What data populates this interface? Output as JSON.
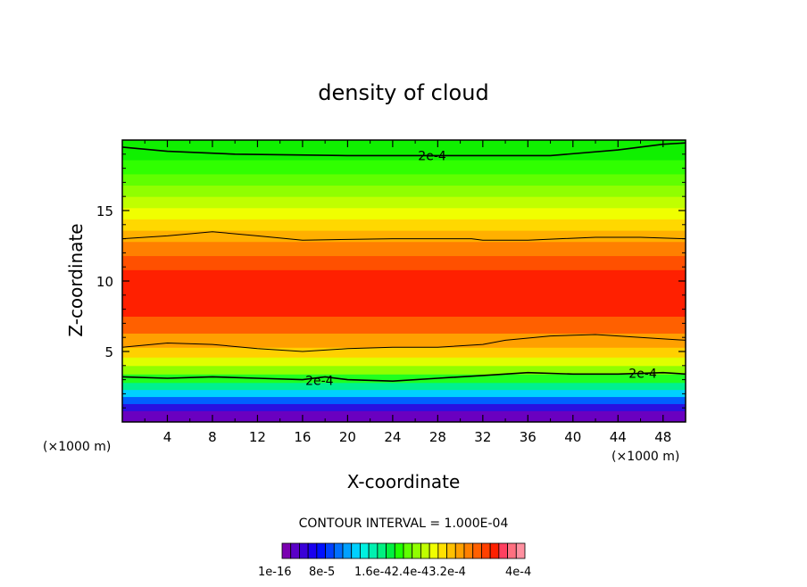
{
  "chart_data": {
    "type": "heatmap",
    "title": "density of cloud",
    "xlabel": "X-coordinate",
    "ylabel": "Z-coordinate",
    "x_unit": "(×1000 m)",
    "z_unit": "(×1000 m)",
    "xlim": [
      0,
      50
    ],
    "ylim": [
      0,
      20
    ],
    "x_ticks": [
      4,
      8,
      12,
      16,
      20,
      24,
      28,
      32,
      36,
      40,
      44,
      48
    ],
    "x_tick_labels": [
      "4",
      "8",
      "12",
      "16",
      "20",
      "24",
      "28",
      "32",
      "36",
      "40",
      "44",
      "48"
    ],
    "y_ticks": [
      5,
      10,
      15
    ],
    "y_tick_labels": [
      "5",
      "10",
      "15"
    ],
    "contour_interval_text": "CONTOUR INTERVAL = 1.000E-04",
    "contour_labels": [
      "2e-4",
      "2e-4",
      "2e-4"
    ],
    "colorbar": {
      "labels": [
        "1e-16",
        "8e-5",
        "1.6e-4",
        "2.4e-4",
        "3.2e-4",
        "4e-4"
      ],
      "label_text": [
        "1e-16",
        "8e-5",
        "1.6e-42.4e-43.2e-4",
        "4e-4"
      ],
      "colors": [
        "#7a00b0",
        "#5a00c8",
        "#3a00d8",
        "#1a00f0",
        "#0010ff",
        "#0040ff",
        "#0070ff",
        "#00a0ff",
        "#00d0ff",
        "#00f0e0",
        "#00f0b0",
        "#00f080",
        "#00f040",
        "#20ff00",
        "#60ff00",
        "#90ff00",
        "#c0ff00",
        "#f0ff00",
        "#ffe000",
        "#ffc000",
        "#ffa000",
        "#ff8000",
        "#ff6000",
        "#ff4000",
        "#ff2000",
        "#ff4060",
        "#ff7080",
        "#ff90a0"
      ]
    },
    "layers": [
      {
        "z_bottom": 0.0,
        "z_top": 0.8,
        "color": "#6a00c0"
      },
      {
        "z_bottom": 0.8,
        "z_top": 1.3,
        "color": "#2a10e0"
      },
      {
        "z_bottom": 1.3,
        "z_top": 1.8,
        "color": "#0060ff"
      },
      {
        "z_bottom": 1.8,
        "z_top": 2.3,
        "color": "#00d0ff"
      },
      {
        "z_bottom": 2.3,
        "z_top": 2.8,
        "color": "#00f090"
      },
      {
        "z_bottom": 2.8,
        "z_top": 3.4,
        "color": "#20ff20"
      },
      {
        "z_bottom": 3.4,
        "z_top": 4.0,
        "color": "#90ff00"
      },
      {
        "z_bottom": 4.0,
        "z_top": 4.6,
        "color": "#e0ff00"
      },
      {
        "z_bottom": 4.6,
        "z_top": 5.3,
        "color": "#ffd000"
      },
      {
        "z_bottom": 5.3,
        "z_top": 6.3,
        "color": "#ffa000"
      },
      {
        "z_bottom": 6.3,
        "z_top": 7.5,
        "color": "#ff6000"
      },
      {
        "z_bottom": 7.5,
        "z_top": 10.8,
        "color": "#ff2000"
      },
      {
        "z_bottom": 10.8,
        "z_top": 11.8,
        "color": "#ff5000"
      },
      {
        "z_bottom": 11.8,
        "z_top": 12.8,
        "color": "#ff8000"
      },
      {
        "z_bottom": 12.8,
        "z_top": 13.6,
        "color": "#ffb000"
      },
      {
        "z_bottom": 13.6,
        "z_top": 14.4,
        "color": "#ffd800"
      },
      {
        "z_bottom": 14.4,
        "z_top": 15.2,
        "color": "#f0ff00"
      },
      {
        "z_bottom": 15.2,
        "z_top": 16.0,
        "color": "#c0ff00"
      },
      {
        "z_bottom": 16.0,
        "z_top": 16.8,
        "color": "#90ff00"
      },
      {
        "z_bottom": 16.8,
        "z_top": 17.6,
        "color": "#60ff00"
      },
      {
        "z_bottom": 17.6,
        "z_top": 18.6,
        "color": "#30ff00"
      },
      {
        "z_bottom": 18.6,
        "z_top": 20.0,
        "color": "#10f000"
      }
    ],
    "contours": [
      {
        "name": "upper-2e-4",
        "points": [
          [
            0,
            19.5
          ],
          [
            4,
            19.2
          ],
          [
            10,
            19.0
          ],
          [
            20,
            18.9
          ],
          [
            30,
            18.9
          ],
          [
            38,
            18.9
          ],
          [
            44,
            19.3
          ],
          [
            48,
            19.7
          ],
          [
            50,
            19.8
          ]
        ]
      },
      {
        "name": "upper-mid",
        "points": [
          [
            0,
            13.0
          ],
          [
            4,
            13.2
          ],
          [
            8,
            13.5
          ],
          [
            12,
            13.2
          ],
          [
            16,
            12.9
          ],
          [
            24,
            13.0
          ],
          [
            31,
            13.0
          ],
          [
            32,
            12.9
          ],
          [
            36,
            12.9
          ],
          [
            42,
            13.1
          ],
          [
            46,
            13.1
          ],
          [
            50,
            13.0
          ]
        ]
      },
      {
        "name": "lower-mid",
        "points": [
          [
            0,
            5.3
          ],
          [
            4,
            5.6
          ],
          [
            8,
            5.5
          ],
          [
            12,
            5.2
          ],
          [
            16,
            5.0
          ],
          [
            20,
            5.2
          ],
          [
            24,
            5.3
          ],
          [
            28,
            5.3
          ],
          [
            32,
            5.5
          ],
          [
            34,
            5.8
          ],
          [
            38,
            6.1
          ],
          [
            42,
            6.2
          ],
          [
            46,
            6.0
          ],
          [
            50,
            5.8
          ]
        ]
      },
      {
        "name": "lower-2e-4",
        "points": [
          [
            0,
            3.2
          ],
          [
            4,
            3.1
          ],
          [
            8,
            3.2
          ],
          [
            12,
            3.1
          ],
          [
            16,
            3.0
          ],
          [
            18,
            3.2
          ],
          [
            20,
            3.0
          ],
          [
            24,
            2.9
          ],
          [
            28,
            3.1
          ],
          [
            32,
            3.3
          ],
          [
            36,
            3.5
          ],
          [
            40,
            3.4
          ],
          [
            44,
            3.4
          ],
          [
            48,
            3.5
          ],
          [
            50,
            3.4
          ]
        ]
      }
    ]
  }
}
